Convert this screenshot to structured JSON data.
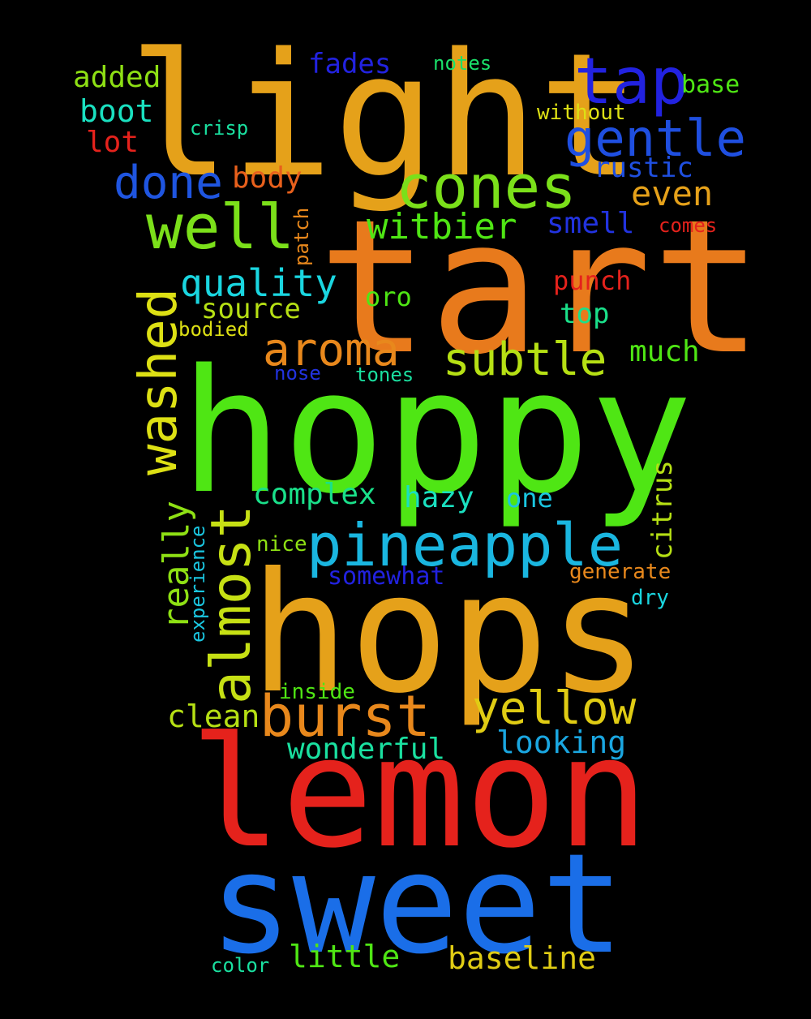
{
  "words": [
    {
      "id": "light",
      "text": "light",
      "color": "#e5a11a"
    },
    {
      "id": "tart",
      "text": "tart",
      "color": "#e87a1c"
    },
    {
      "id": "hoppy",
      "text": "hoppy",
      "color": "#4fe614"
    },
    {
      "id": "hops",
      "text": "hops",
      "color": "#e5a11a"
    },
    {
      "id": "lemon",
      "text": "lemon",
      "color": "#e5221c"
    },
    {
      "id": "sweet",
      "text": "sweet",
      "color": "#1a6ee8"
    },
    {
      "id": "tap",
      "text": "tap",
      "color": "#2222e0"
    },
    {
      "id": "gentle",
      "text": "gentle",
      "color": "#1f4fe0"
    },
    {
      "id": "cones",
      "text": "cones",
      "color": "#7be01a"
    },
    {
      "id": "well",
      "text": "well",
      "color": "#7be01a"
    },
    {
      "id": "done",
      "text": "done",
      "color": "#1f55e0"
    },
    {
      "id": "washed",
      "text": "washed",
      "color": "#dde014"
    },
    {
      "id": "pineapple",
      "text": "pineapple",
      "color": "#1ab6e0"
    },
    {
      "id": "burst",
      "text": "burst",
      "color": "#e8881c"
    },
    {
      "id": "yellow",
      "text": "yellow",
      "color": "#e0cc14"
    },
    {
      "id": "almost",
      "text": "almost",
      "color": "#c6e014"
    },
    {
      "id": "aroma",
      "text": "aroma",
      "color": "#e8881c"
    },
    {
      "id": "subtle",
      "text": "subtle",
      "color": "#b6e014"
    },
    {
      "id": "quality",
      "text": "quality",
      "color": "#1ad6e0"
    },
    {
      "id": "witbier",
      "text": "witbier",
      "color": "#4fe614"
    },
    {
      "id": "really",
      "text": "really",
      "color": "#8ee014"
    },
    {
      "id": "fades",
      "text": "fades",
      "color": "#2222e0"
    },
    {
      "id": "added",
      "text": "added",
      "color": "#8ee014"
    },
    {
      "id": "boot",
      "text": "boot",
      "color": "#1ae0c0"
    },
    {
      "id": "lot",
      "text": "lot",
      "color": "#e5221c"
    },
    {
      "id": "crisp",
      "text": "crisp",
      "color": "#1ae0a0"
    },
    {
      "id": "notes",
      "text": "notes",
      "color": "#1ae06a"
    },
    {
      "id": "base",
      "text": "base",
      "color": "#4fe614"
    },
    {
      "id": "without",
      "text": "without",
      "color": "#dde014"
    },
    {
      "id": "rustic",
      "text": "rustic",
      "color": "#1f4fe0"
    },
    {
      "id": "even",
      "text": "even",
      "color": "#e5a11a"
    },
    {
      "id": "body",
      "text": "body",
      "color": "#e8601c"
    },
    {
      "id": "smell",
      "text": "smell",
      "color": "#2233e0"
    },
    {
      "id": "comes",
      "text": "comes",
      "color": "#e5221c"
    },
    {
      "id": "patch",
      "text": "patch",
      "color": "#e8881c"
    },
    {
      "id": "punch",
      "text": "punch",
      "color": "#e5221c"
    },
    {
      "id": "source",
      "text": "source",
      "color": "#b6e014"
    },
    {
      "id": "oro",
      "text": "oro",
      "color": "#4fe614"
    },
    {
      "id": "top",
      "text": "top",
      "color": "#1ae08a"
    },
    {
      "id": "bodied",
      "text": "bodied",
      "color": "#dde014"
    },
    {
      "id": "much",
      "text": "much",
      "color": "#4fe614"
    },
    {
      "id": "nose",
      "text": "nose",
      "color": "#2233e0"
    },
    {
      "id": "tones",
      "text": "tones",
      "color": "#1ae0a0"
    },
    {
      "id": "complex",
      "text": "complex",
      "color": "#1ae08a"
    },
    {
      "id": "hazy",
      "text": "hazy",
      "color": "#1ae0c0"
    },
    {
      "id": "one",
      "text": "one",
      "color": "#1ac6e0"
    },
    {
      "id": "citrus",
      "text": "citrus",
      "color": "#b6e014"
    },
    {
      "id": "experience",
      "text": "experience",
      "color": "#1ac6e0"
    },
    {
      "id": "nice",
      "text": "nice",
      "color": "#8ee014"
    },
    {
      "id": "somewhat",
      "text": "somewhat",
      "color": "#2222e0"
    },
    {
      "id": "generate",
      "text": "generate",
      "color": "#e8881c"
    },
    {
      "id": "dry",
      "text": "dry",
      "color": "#1ad6e0"
    },
    {
      "id": "inside",
      "text": "inside",
      "color": "#4fe614"
    },
    {
      "id": "clean",
      "text": "clean",
      "color": "#b6e014"
    },
    {
      "id": "looking",
      "text": "looking",
      "color": "#1aa6e0"
    },
    {
      "id": "wonderful",
      "text": "wonderful",
      "color": "#1ae0a0"
    },
    {
      "id": "little",
      "text": "little",
      "color": "#4fe614"
    },
    {
      "id": "baseline",
      "text": "baseline",
      "color": "#e0cc14"
    },
    {
      "id": "color",
      "text": "color",
      "color": "#1ae0a0"
    }
  ]
}
